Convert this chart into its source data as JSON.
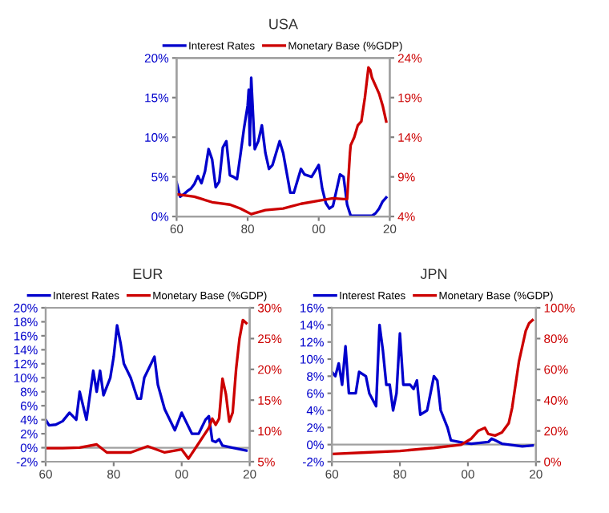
{
  "chart_data": [
    {
      "type": "line",
      "title": "USA",
      "legend": "top",
      "grid": false,
      "marker": "none",
      "line_style": "solid",
      "xlim": [
        1960,
        2020
      ],
      "xticks": [
        {
          "value": 1960,
          "label": "60"
        },
        {
          "value": 1980,
          "label": "80"
        },
        {
          "value": 2000,
          "label": "00"
        },
        {
          "value": 2020,
          "label": "20"
        }
      ],
      "ylim": [
        0,
        20
      ],
      "yticks": [
        {
          "value": 0,
          "label": "0%"
        },
        {
          "value": 5,
          "label": "5%"
        },
        {
          "value": 10,
          "label": "10%"
        },
        {
          "value": 15,
          "label": "15%"
        },
        {
          "value": 20,
          "label": "20%"
        }
      ],
      "y2lim": [
        4,
        24
      ],
      "y2ticks": [
        {
          "value": 4,
          "label": "4%"
        },
        {
          "value": 9,
          "label": "9%"
        },
        {
          "value": 14,
          "label": "14%"
        },
        {
          "value": 19,
          "label": "19%"
        },
        {
          "value": 24,
          "label": "24%"
        }
      ],
      "series": [
        {
          "name": "Interest Rates",
          "color": "#0000cc",
          "x": [
            1960,
            1961,
            1962,
            1963,
            1964,
            1965,
            1966,
            1967,
            1968,
            1969,
            1970,
            1971,
            1972,
            1973,
            1974,
            1975,
            1976,
            1977,
            1978,
            1979,
            1980,
            1980.3,
            1980.6,
            1981,
            1982,
            1983,
            1984,
            1985,
            1986,
            1987,
            1989,
            1990,
            1992,
            1993,
            1995,
            1996,
            1998,
            2000,
            2001,
            2002,
            2003,
            2004,
            2006,
            2007,
            2008,
            2009,
            2012,
            2015,
            2016,
            2017,
            2018,
            2019
          ],
          "values": [
            4.3,
            2.5,
            2.8,
            3.2,
            3.5,
            4.1,
            5.1,
            4.2,
            5.7,
            8.5,
            7.2,
            3.7,
            4.4,
            8.7,
            9.5,
            5.2,
            5.0,
            4.7,
            7.9,
            11.2,
            14,
            16,
            9,
            17.5,
            8.5,
            9.5,
            11.5,
            8,
            6,
            6.5,
            9.5,
            8,
            3,
            3,
            6,
            5.3,
            5,
            6.5,
            3.5,
            1.7,
            1,
            1.3,
            5.3,
            5,
            1.5,
            0.1,
            0.1,
            0.1,
            0.4,
            1,
            1.9,
            2.4
          ]
        },
        {
          "name": "Monetary Base (%GDP)",
          "color": "#cc0000",
          "axis": "y2",
          "x": [
            1960,
            1965,
            1970,
            1975,
            1978,
            1981,
            1985,
            1990,
            1995,
            2000,
            2004,
            2007,
            2008,
            2008.8,
            2009,
            2010,
            2011,
            2012,
            2013,
            2014,
            2014.5,
            2015,
            2016,
            2017,
            2018,
            2019
          ],
          "values": [
            6.8,
            6.5,
            5.8,
            5.5,
            5,
            4.3,
            4.8,
            5,
            5.6,
            6,
            6.3,
            6.2,
            6.2,
            12,
            13,
            14,
            15.5,
            16,
            19,
            22.8,
            22.5,
            21.5,
            20.5,
            19.5,
            18,
            16
          ]
        }
      ]
    },
    {
      "type": "line",
      "title": "EUR",
      "legend": "top",
      "grid": false,
      "marker": "none",
      "line_style": "solid",
      "xlim": [
        1960,
        2020
      ],
      "xticks": [
        {
          "value": 1960,
          "label": "60"
        },
        {
          "value": 1980,
          "label": "80"
        },
        {
          "value": 2000,
          "label": "00"
        },
        {
          "value": 2020,
          "label": "20"
        }
      ],
      "ylim": [
        -2,
        20
      ],
      "yticks": [
        {
          "value": -2,
          "label": "-2%"
        },
        {
          "value": 0,
          "label": "0%"
        },
        {
          "value": 2,
          "label": "2%"
        },
        {
          "value": 4,
          "label": "4%"
        },
        {
          "value": 6,
          "label": "6%"
        },
        {
          "value": 8,
          "label": "8%"
        },
        {
          "value": 10,
          "label": "10%"
        },
        {
          "value": 12,
          "label": "12%"
        },
        {
          "value": 14,
          "label": "14%"
        },
        {
          "value": 16,
          "label": "16%"
        },
        {
          "value": 18,
          "label": "18%"
        },
        {
          "value": 20,
          "label": "20%"
        }
      ],
      "y2lim": [
        5,
        30
      ],
      "y2ticks": [
        {
          "value": 5,
          "label": "5%"
        },
        {
          "value": 10,
          "label": "10%"
        },
        {
          "value": 15,
          "label": "15%"
        },
        {
          "value": 20,
          "label": "20%"
        },
        {
          "value": 25,
          "label": "25%"
        },
        {
          "value": 30,
          "label": "30%"
        }
      ],
      "ref_lines": [
        {
          "axis": "y",
          "value": 0,
          "color": "#a0a0a0"
        }
      ],
      "series": [
        {
          "name": "Interest Rates",
          "color": "#0000cc",
          "x": [
            1960,
            1961,
            1963,
            1965,
            1967,
            1969,
            1970,
            1972,
            1974,
            1975,
            1976,
            1977,
            1979,
            1980,
            1981,
            1982,
            1983,
            1985,
            1987,
            1988,
            1989,
            1990,
            1992,
            1993,
            1995,
            1997,
            1998,
            2000,
            2001,
            2003,
            2005,
            2007,
            2008,
            2009,
            2010,
            2011,
            2012,
            2015,
            2019
          ],
          "values": [
            4,
            3.2,
            3.3,
            3.8,
            5,
            4,
            8,
            4,
            11,
            8,
            11,
            7.5,
            10,
            13,
            17.5,
            15,
            12,
            10,
            7,
            7,
            10,
            11,
            13,
            9,
            5.5,
            3.5,
            2.5,
            5,
            4,
            2,
            2,
            4,
            4.5,
            1,
            0.8,
            1.2,
            0.3,
            0,
            -0.4
          ]
        },
        {
          "name": "Monetary Base (%GDP)",
          "color": "#cc0000",
          "axis": "y2",
          "x": [
            1960,
            1965,
            1970,
            1975,
            1978,
            1985,
            1990,
            1995,
            2000,
            2002,
            2005,
            2008,
            2009,
            2010,
            2011,
            2012,
            2013,
            2014,
            2015,
            2016,
            2017,
            2018,
            2019
          ],
          "values": [
            7.2,
            7.2,
            7.3,
            7.8,
            6.5,
            6.5,
            7.5,
            6.5,
            7,
            5.5,
            8,
            10.5,
            12,
            11,
            12,
            18.5,
            16,
            11.5,
            13,
            20,
            25,
            28,
            27.5
          ]
        }
      ]
    },
    {
      "type": "line",
      "title": "JPN",
      "legend": "top",
      "grid": false,
      "marker": "none",
      "line_style": "solid",
      "xlim": [
        1960,
        2020
      ],
      "xticks": [
        {
          "value": 1960,
          "label": "60"
        },
        {
          "value": 1980,
          "label": "80"
        },
        {
          "value": 2000,
          "label": "00"
        },
        {
          "value": 2020,
          "label": "20"
        }
      ],
      "ylim": [
        -2,
        16
      ],
      "yticks": [
        {
          "value": -2,
          "label": "-2%"
        },
        {
          "value": 0,
          "label": "0%"
        },
        {
          "value": 2,
          "label": "2%"
        },
        {
          "value": 4,
          "label": "4%"
        },
        {
          "value": 6,
          "label": "6%"
        },
        {
          "value": 8,
          "label": "8%"
        },
        {
          "value": 10,
          "label": "10%"
        },
        {
          "value": 12,
          "label": "12%"
        },
        {
          "value": 14,
          "label": "14%"
        },
        {
          "value": 16,
          "label": "16%"
        }
      ],
      "y2lim": [
        0,
        100
      ],
      "y2ticks": [
        {
          "value": 0,
          "label": "0%"
        },
        {
          "value": 20,
          "label": "20%"
        },
        {
          "value": 40,
          "label": "40%"
        },
        {
          "value": 60,
          "label": "60%"
        },
        {
          "value": 80,
          "label": "80%"
        },
        {
          "value": 100,
          "label": "100%"
        }
      ],
      "ref_lines": [
        {
          "axis": "y",
          "value": 0,
          "color": "#a0a0a0"
        }
      ],
      "series": [
        {
          "name": "Interest Rates",
          "color": "#0000cc",
          "x": [
            1960,
            1961,
            1962,
            1963,
            1964,
            1965,
            1967,
            1968,
            1970,
            1971,
            1973,
            1974,
            1975,
            1976,
            1977,
            1978,
            1979,
            1980,
            1981,
            1983,
            1984,
            1985,
            1986,
            1988,
            1990,
            1991,
            1992,
            1994,
            1995,
            1999,
            2001,
            2006,
            2007,
            2008,
            2010,
            2016,
            2019
          ],
          "values": [
            8.5,
            8,
            9.5,
            7,
            11.5,
            6,
            6,
            8.5,
            8,
            6,
            4.5,
            14,
            11,
            7,
            7,
            4,
            6,
            13,
            7,
            7,
            6.5,
            7.5,
            3.5,
            4,
            8,
            7.5,
            4,
            2,
            0.5,
            0.2,
            0.1,
            0.3,
            0.7,
            0.5,
            0.1,
            -0.2,
            -0.1
          ]
        },
        {
          "name": "Monetary Base (%GDP)",
          "color": "#cc0000",
          "axis": "y2",
          "x": [
            1960,
            1970,
            1980,
            1990,
            1998,
            2001,
            2003,
            2005,
            2006,
            2008,
            2010,
            2012,
            2013,
            2014,
            2015,
            2016,
            2017,
            2018,
            2019
          ],
          "values": [
            5,
            6,
            7,
            9,
            11,
            15,
            20,
            22,
            18,
            17,
            19,
            25,
            35,
            50,
            65,
            75,
            85,
            90,
            92
          ]
        }
      ]
    }
  ]
}
